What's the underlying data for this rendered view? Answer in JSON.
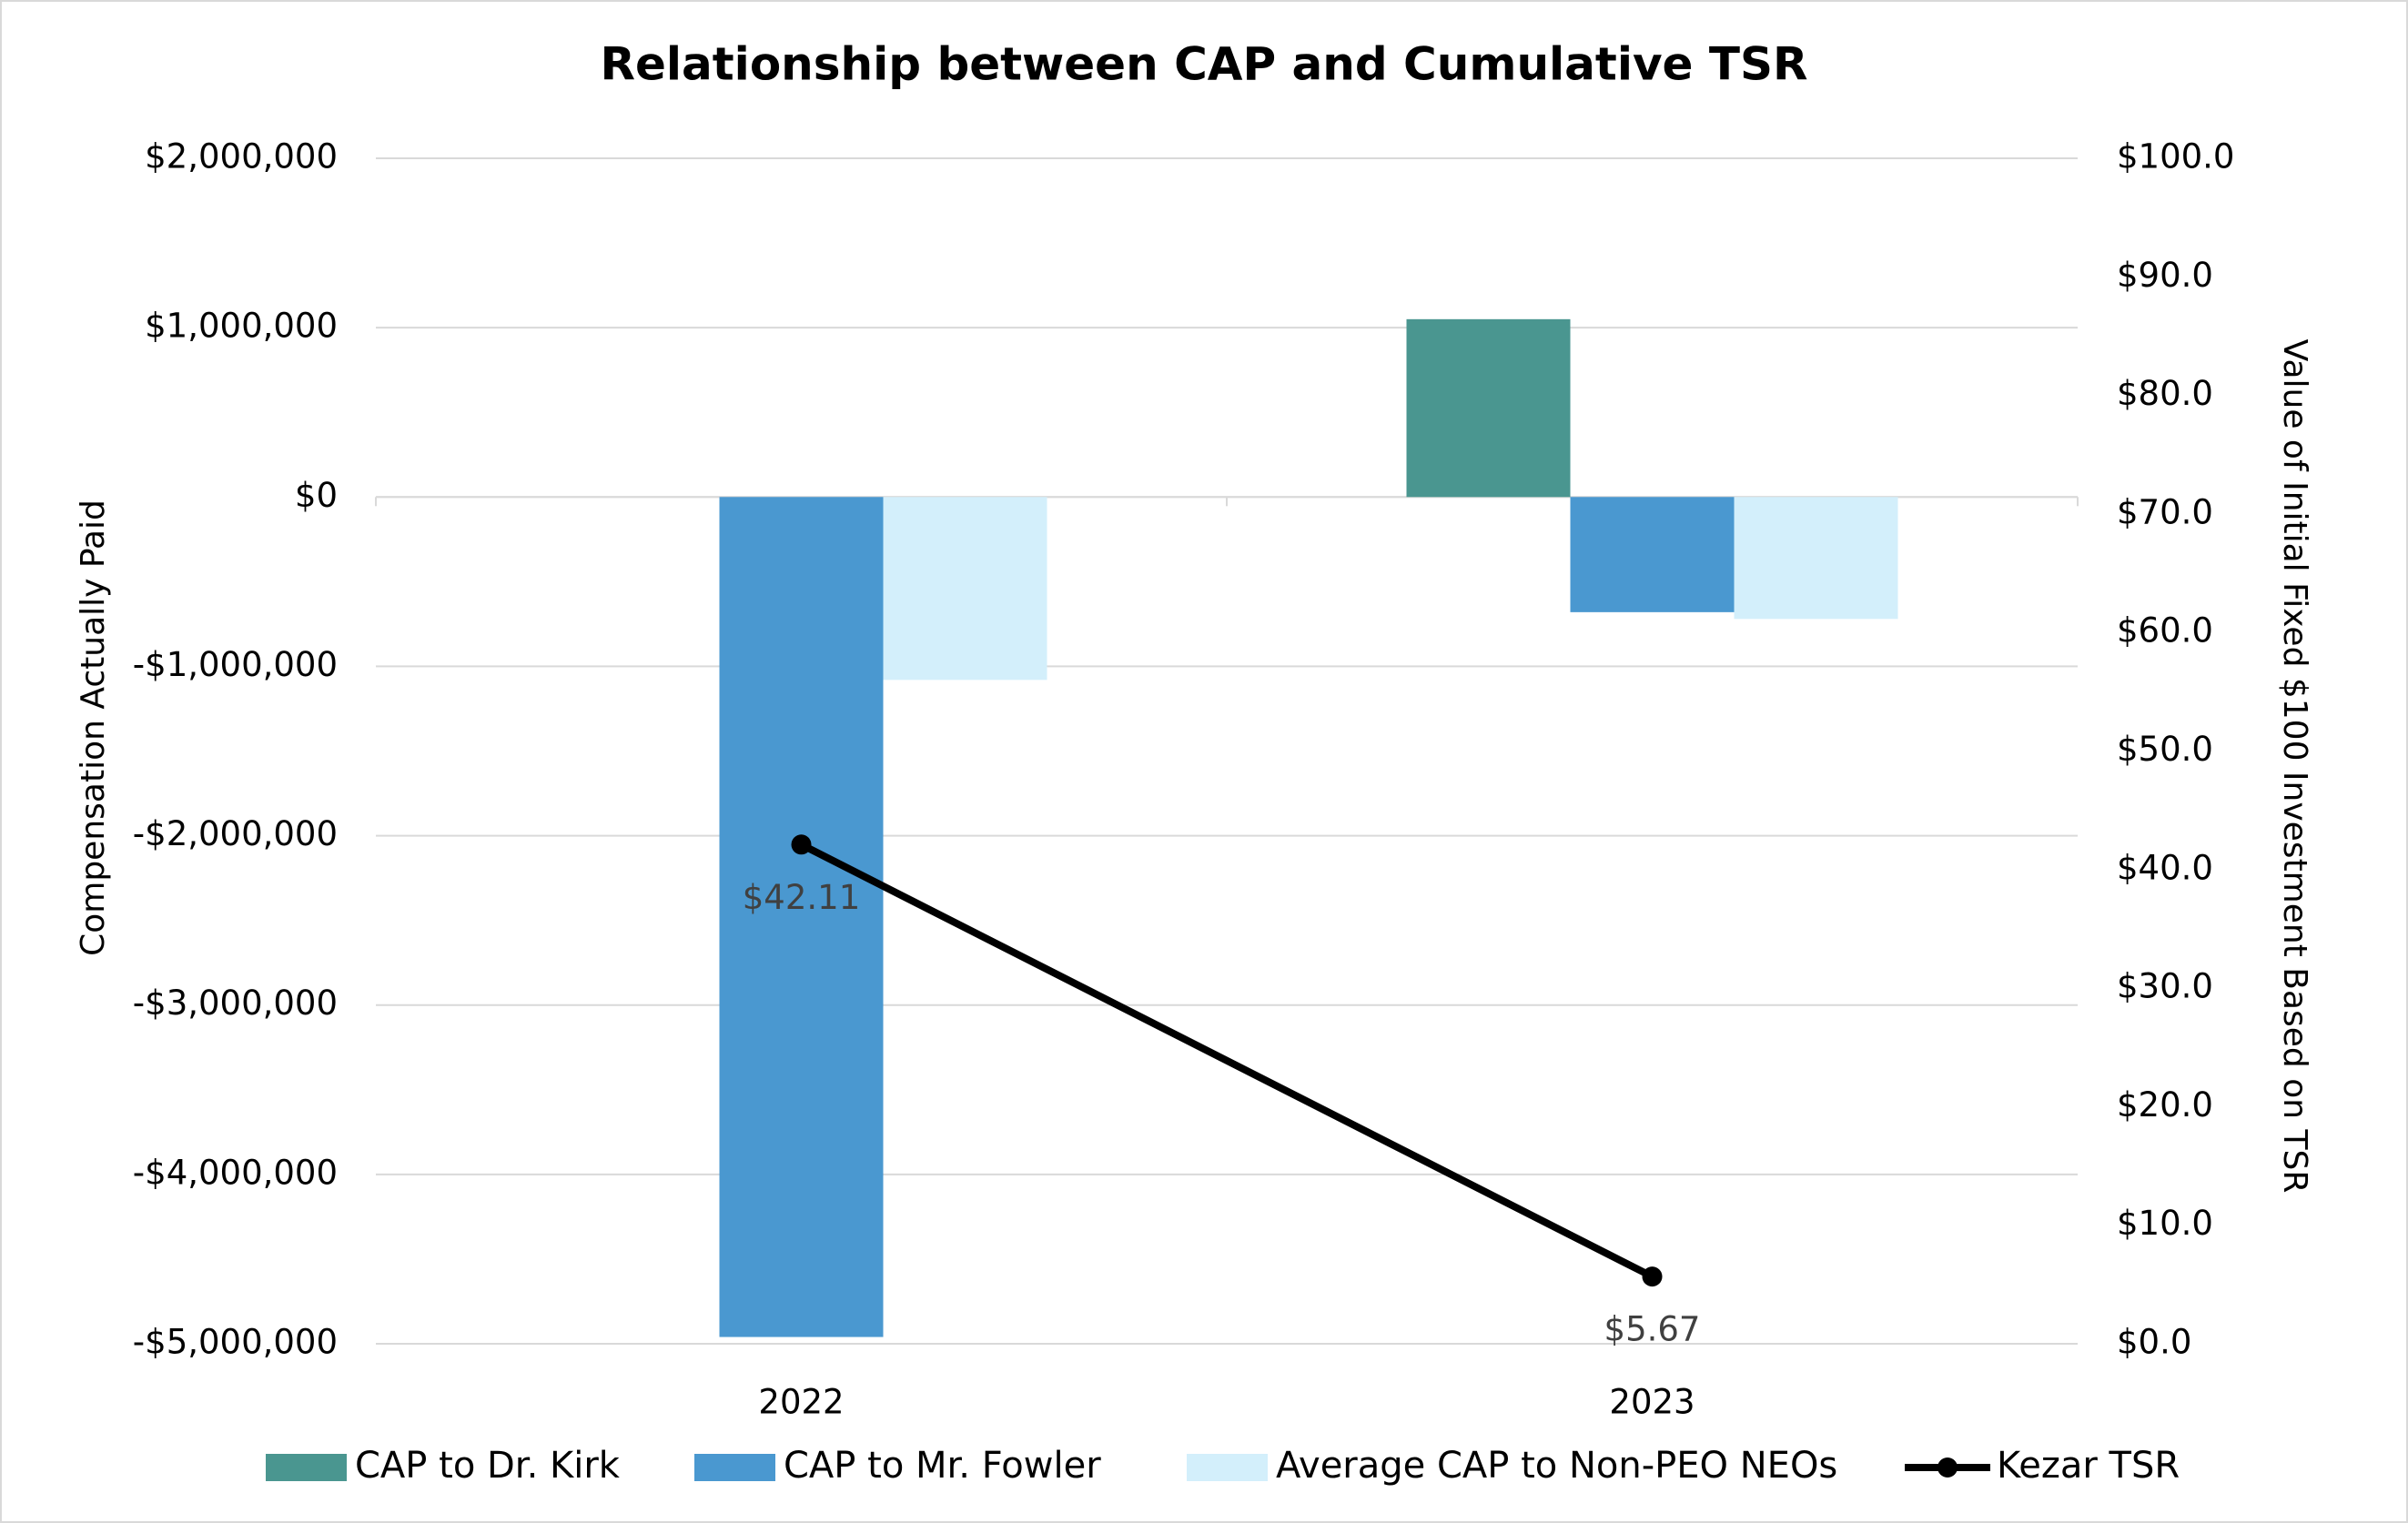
{
  "chart_data": {
    "type": "bar",
    "title": "Relationship between CAP and Cumulative TSR",
    "y_label": "Compensation Actually Paid",
    "y2_label": "Value of Initial Fixed $100 Investment Based on TSR",
    "categories": [
      "2022",
      "2023"
    ],
    "series": [
      {
        "name": "CAP to Dr. Kirk",
        "color": "#4a9690",
        "values": [
          null,
          1050000
        ]
      },
      {
        "name": "CAP to Mr. Fowler",
        "color": "#4a98d0",
        "values": [
          -4960000,
          -680000
        ]
      },
      {
        "name": "Average CAP to Non-PEO NEOs",
        "color": "#d3effb",
        "values": [
          -1080000,
          -720000
        ]
      },
      {
        "name": "Kezar TSR",
        "color": "#000000",
        "type": "line",
        "axis": "y2",
        "values": [
          42.11,
          5.67
        ],
        "value_labels": [
          "$42.11",
          "$5.67"
        ]
      }
    ],
    "ylim": [
      -5000000,
      2000000
    ],
    "yticks": [
      {
        "value": 2000000,
        "label": "$2,000,000"
      },
      {
        "value": 1000000,
        "label": "$1,000,000"
      },
      {
        "value": 0,
        "label": "$0"
      },
      {
        "value": -1000000,
        "label": "-$1,000,000"
      },
      {
        "value": -2000000,
        "label": "-$2,000,000"
      },
      {
        "value": -3000000,
        "label": "-$3,000,000"
      },
      {
        "value": -4000000,
        "label": "-$4,000,000"
      },
      {
        "value": -5000000,
        "label": "-$5,000,000"
      }
    ],
    "y2lim": [
      0,
      100
    ],
    "y2ticks": [
      {
        "value": 100,
        "label": "$100.0"
      },
      {
        "value": 90,
        "label": "$90.0"
      },
      {
        "value": 80,
        "label": "$80.0"
      },
      {
        "value": 70,
        "label": "$70.0"
      },
      {
        "value": 60,
        "label": "$60.0"
      },
      {
        "value": 50,
        "label": "$50.0"
      },
      {
        "value": 40,
        "label": "$40.0"
      },
      {
        "value": 30,
        "label": "$30.0"
      },
      {
        "value": 20,
        "label": "$20.0"
      },
      {
        "value": 10,
        "label": "$10.0"
      },
      {
        "value": 0,
        "label": "$0.0"
      }
    ],
    "grid": true,
    "legend": "bottom"
  }
}
